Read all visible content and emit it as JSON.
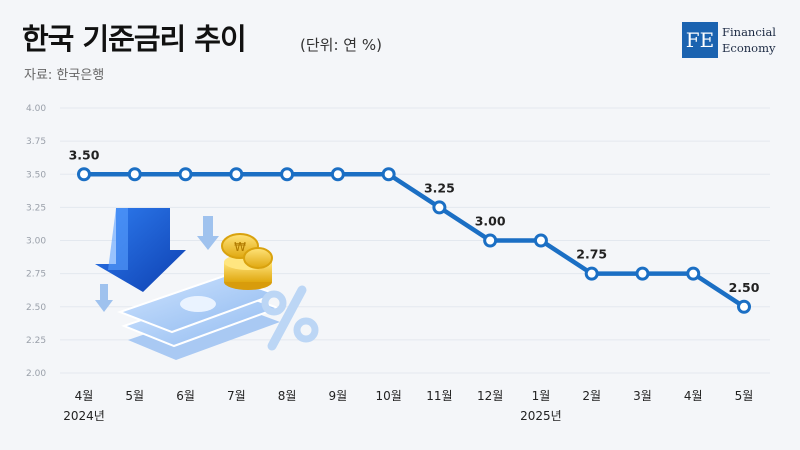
{
  "header": {
    "title": "한국 기준금리 추이",
    "unit": "(단위: 연 %)",
    "source": "자료: 한국은행"
  },
  "logo": {
    "mark": "FE",
    "text": "Financial\nEconomy"
  },
  "colors": {
    "line": "#1b6fc4",
    "grid": "#e3e8ef",
    "background": "#f4f6f9"
  },
  "chart_data": {
    "type": "line",
    "categories": [
      "4월",
      "5월",
      "6월",
      "7월",
      "8월",
      "9월",
      "10월",
      "11월",
      "12월",
      "1월",
      "2월",
      "3월",
      "4월",
      "5월"
    ],
    "year_labels": [
      {
        "index": 0,
        "label": "2024년"
      },
      {
        "index": 9,
        "label": "2025년"
      }
    ],
    "values": [
      3.5,
      3.5,
      3.5,
      3.5,
      3.5,
      3.5,
      3.5,
      3.25,
      3.0,
      3.0,
      2.75,
      2.75,
      2.75,
      2.5
    ],
    "data_labels": [
      {
        "index": 0,
        "label": "3.50"
      },
      {
        "index": 7,
        "label": "3.25"
      },
      {
        "index": 8,
        "label": "3.00"
      },
      {
        "index": 10,
        "label": "2.75"
      },
      {
        "index": 13,
        "label": "2.50"
      }
    ],
    "y_ticks": [
      "2.00",
      "2.25",
      "2.50",
      "2.75",
      "3.00",
      "3.25",
      "3.50",
      "3.75",
      "4.00"
    ],
    "ylim": [
      2.0,
      4.0
    ],
    "grid": true
  }
}
